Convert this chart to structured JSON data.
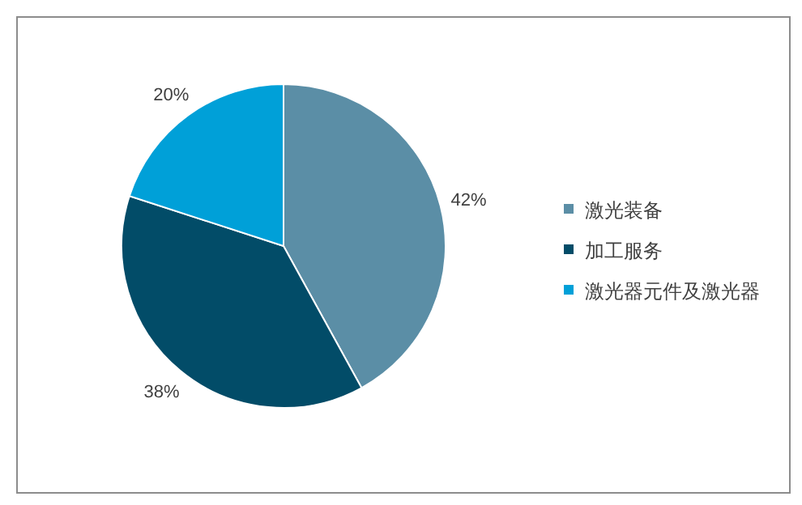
{
  "chart_data": {
    "type": "pie",
    "categories": [
      "激光装备",
      "加工服务",
      "激光器元件及激光器"
    ],
    "values": [
      42,
      38,
      20
    ],
    "colors": [
      "#5b8ea6",
      "#024c68",
      "#00a0d8"
    ],
    "value_labels": [
      "42%",
      "38%",
      "20%"
    ],
    "legend": "right"
  }
}
